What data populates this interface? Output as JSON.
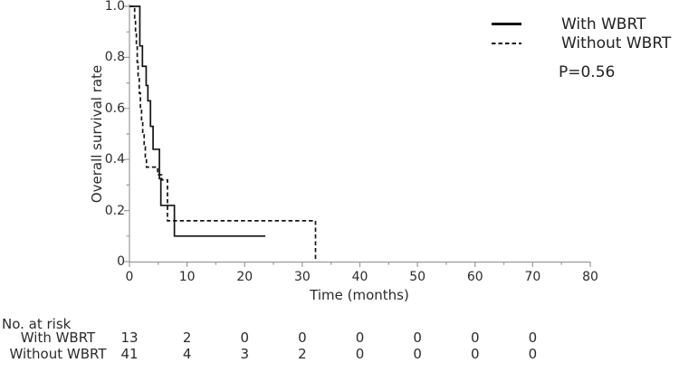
{
  "figure": {
    "ylabel": "Overall survival rate",
    "xlabel": "Time (months)",
    "p_value": "P=0.56",
    "legend": [
      {
        "label": "With WBRT",
        "line_style": "solid"
      },
      {
        "label": "Without WBRT",
        "line_style": "dashed"
      }
    ]
  },
  "chart_data": {
    "type": "line",
    "subtype": "kaplan-meier-step",
    "title": "",
    "xlabel": "Time (months)",
    "ylabel": "Overall survival rate",
    "xlim": [
      0,
      80
    ],
    "ylim": [
      0,
      1.0
    ],
    "x_ticks": [
      0,
      10,
      20,
      30,
      40,
      50,
      60,
      70,
      80
    ],
    "x_minor_ticks": [
      5,
      15,
      25,
      35,
      45,
      55,
      65,
      75
    ],
    "y_ticks": [
      {
        "value": 1.0,
        "label": "1.0"
      },
      {
        "value": 0.8,
        "label": "0.8"
      },
      {
        "value": 0.6,
        "label": "0.6"
      },
      {
        "value": 0.4,
        "label": "0.4"
      },
      {
        "value": 0.2,
        "label": "0.2"
      },
      {
        "value": 0.0,
        "label": "0"
      }
    ],
    "y_minor_ticks": [
      0.1,
      0.3,
      0.5,
      0.7,
      0.9
    ],
    "grid": false,
    "legend_position": "top-right",
    "annotation": "P=0.56",
    "series": [
      {
        "name": "With WBRT",
        "line": "solid",
        "steps": [
          [
            0,
            1.0
          ],
          [
            1.8,
            0.845
          ],
          [
            2.25,
            0.765
          ],
          [
            2.9,
            0.69
          ],
          [
            3.2,
            0.63
          ],
          [
            3.65,
            0.53
          ],
          [
            4.1,
            0.44
          ],
          [
            5.2,
            0.325
          ],
          [
            5.45,
            0.22
          ],
          [
            7.8,
            0.1
          ]
        ],
        "end_x": 23.6
      },
      {
        "name": "Without WBRT",
        "line": "dashed",
        "steps": [
          [
            0,
            1.0
          ],
          [
            0.9,
            0.95
          ],
          [
            1.05,
            0.9
          ],
          [
            1.2,
            0.85
          ],
          [
            1.35,
            0.78
          ],
          [
            1.5,
            0.72
          ],
          [
            1.7,
            0.66
          ],
          [
            1.9,
            0.6
          ],
          [
            2.1,
            0.55
          ],
          [
            2.3,
            0.5
          ],
          [
            2.55,
            0.45
          ],
          [
            2.75,
            0.41
          ],
          [
            2.95,
            0.37
          ],
          [
            4.9,
            0.34
          ],
          [
            5.6,
            0.32
          ],
          [
            6.6,
            0.16
          ],
          [
            32.3,
            0.0
          ]
        ],
        "end_x": 32.3
      }
    ]
  },
  "risk_table": {
    "header": "No. at risk",
    "time_points": [
      0,
      10,
      20,
      30,
      40,
      50,
      60,
      70
    ],
    "rows": [
      {
        "label": "With WBRT",
        "counts": [
          13,
          2,
          0,
          0,
          0,
          0,
          0,
          0
        ]
      },
      {
        "label": "Without WBRT",
        "counts": [
          41,
          4,
          3,
          2,
          0,
          0,
          0,
          0
        ]
      }
    ]
  },
  "colors": {
    "curve": "#141414",
    "axis": "#9a9a9a",
    "text": "#262626",
    "background": "#ffffff"
  }
}
